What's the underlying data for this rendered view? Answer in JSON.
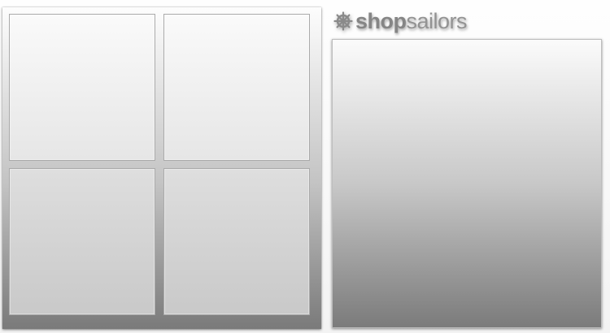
{
  "brand": {
    "name_bold": "shop",
    "name_light": "sailors",
    "icon": "ship-wheel-icon"
  },
  "grid": {
    "tiles": [
      {
        "position": "top-left"
      },
      {
        "position": "top-right"
      },
      {
        "position": "bottom-left"
      },
      {
        "position": "bottom-right"
      }
    ]
  },
  "colors": {
    "brand_text": "#888888",
    "panel_gradient_top": "#fbfbfb",
    "panel_gradient_bottom": "#7b7b7b"
  }
}
